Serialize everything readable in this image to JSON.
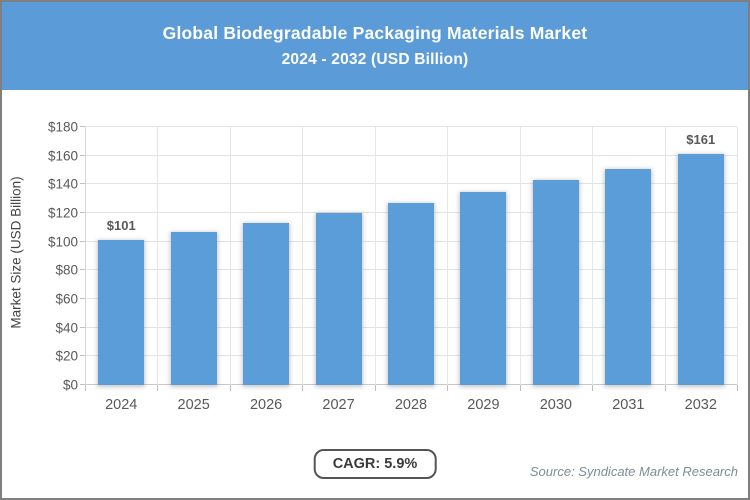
{
  "header": {
    "title": "Global Biodegradable Packaging Materials Market",
    "subtitle": "2024 - 2032 (USD Billion)"
  },
  "chart_data": {
    "type": "bar",
    "title": "Global Biodegradable Packaging Materials Market 2024 - 2032 (USD Billion)",
    "categories": [
      "2024",
      "2025",
      "2026",
      "2027",
      "2028",
      "2029",
      "2030",
      "2031",
      "2032"
    ],
    "values": [
      101,
      107,
      113,
      120,
      127,
      135,
      143,
      151,
      161
    ],
    "bar_labels": [
      "$101",
      "",
      "",
      "",
      "",
      "",
      "",
      "",
      "$161"
    ],
    "xlabel": "",
    "ylabel": "Market Size (USD Billion)",
    "ylim": [
      0,
      180
    ],
    "y_tick_step": 20,
    "y_tick_labels": [
      "$0",
      "$20",
      "$40",
      "$60",
      "$80",
      "$100",
      "$120",
      "$140",
      "$160",
      "$180"
    ],
    "grid": true,
    "legend": "none"
  },
  "footer": {
    "cagr_label": "CAGR: 5.9%",
    "source": "Source: Syndicate Market Research"
  },
  "colors": {
    "header_bg": "#5b9cd8",
    "header_text": "#ffffff",
    "bar": "#5b9dd8",
    "grid": "#e3e3e3",
    "axis_text": "#595959",
    "figure_border": "#7f7f7f",
    "cagr_border": "#555555",
    "source_text": "#7e8d99"
  }
}
